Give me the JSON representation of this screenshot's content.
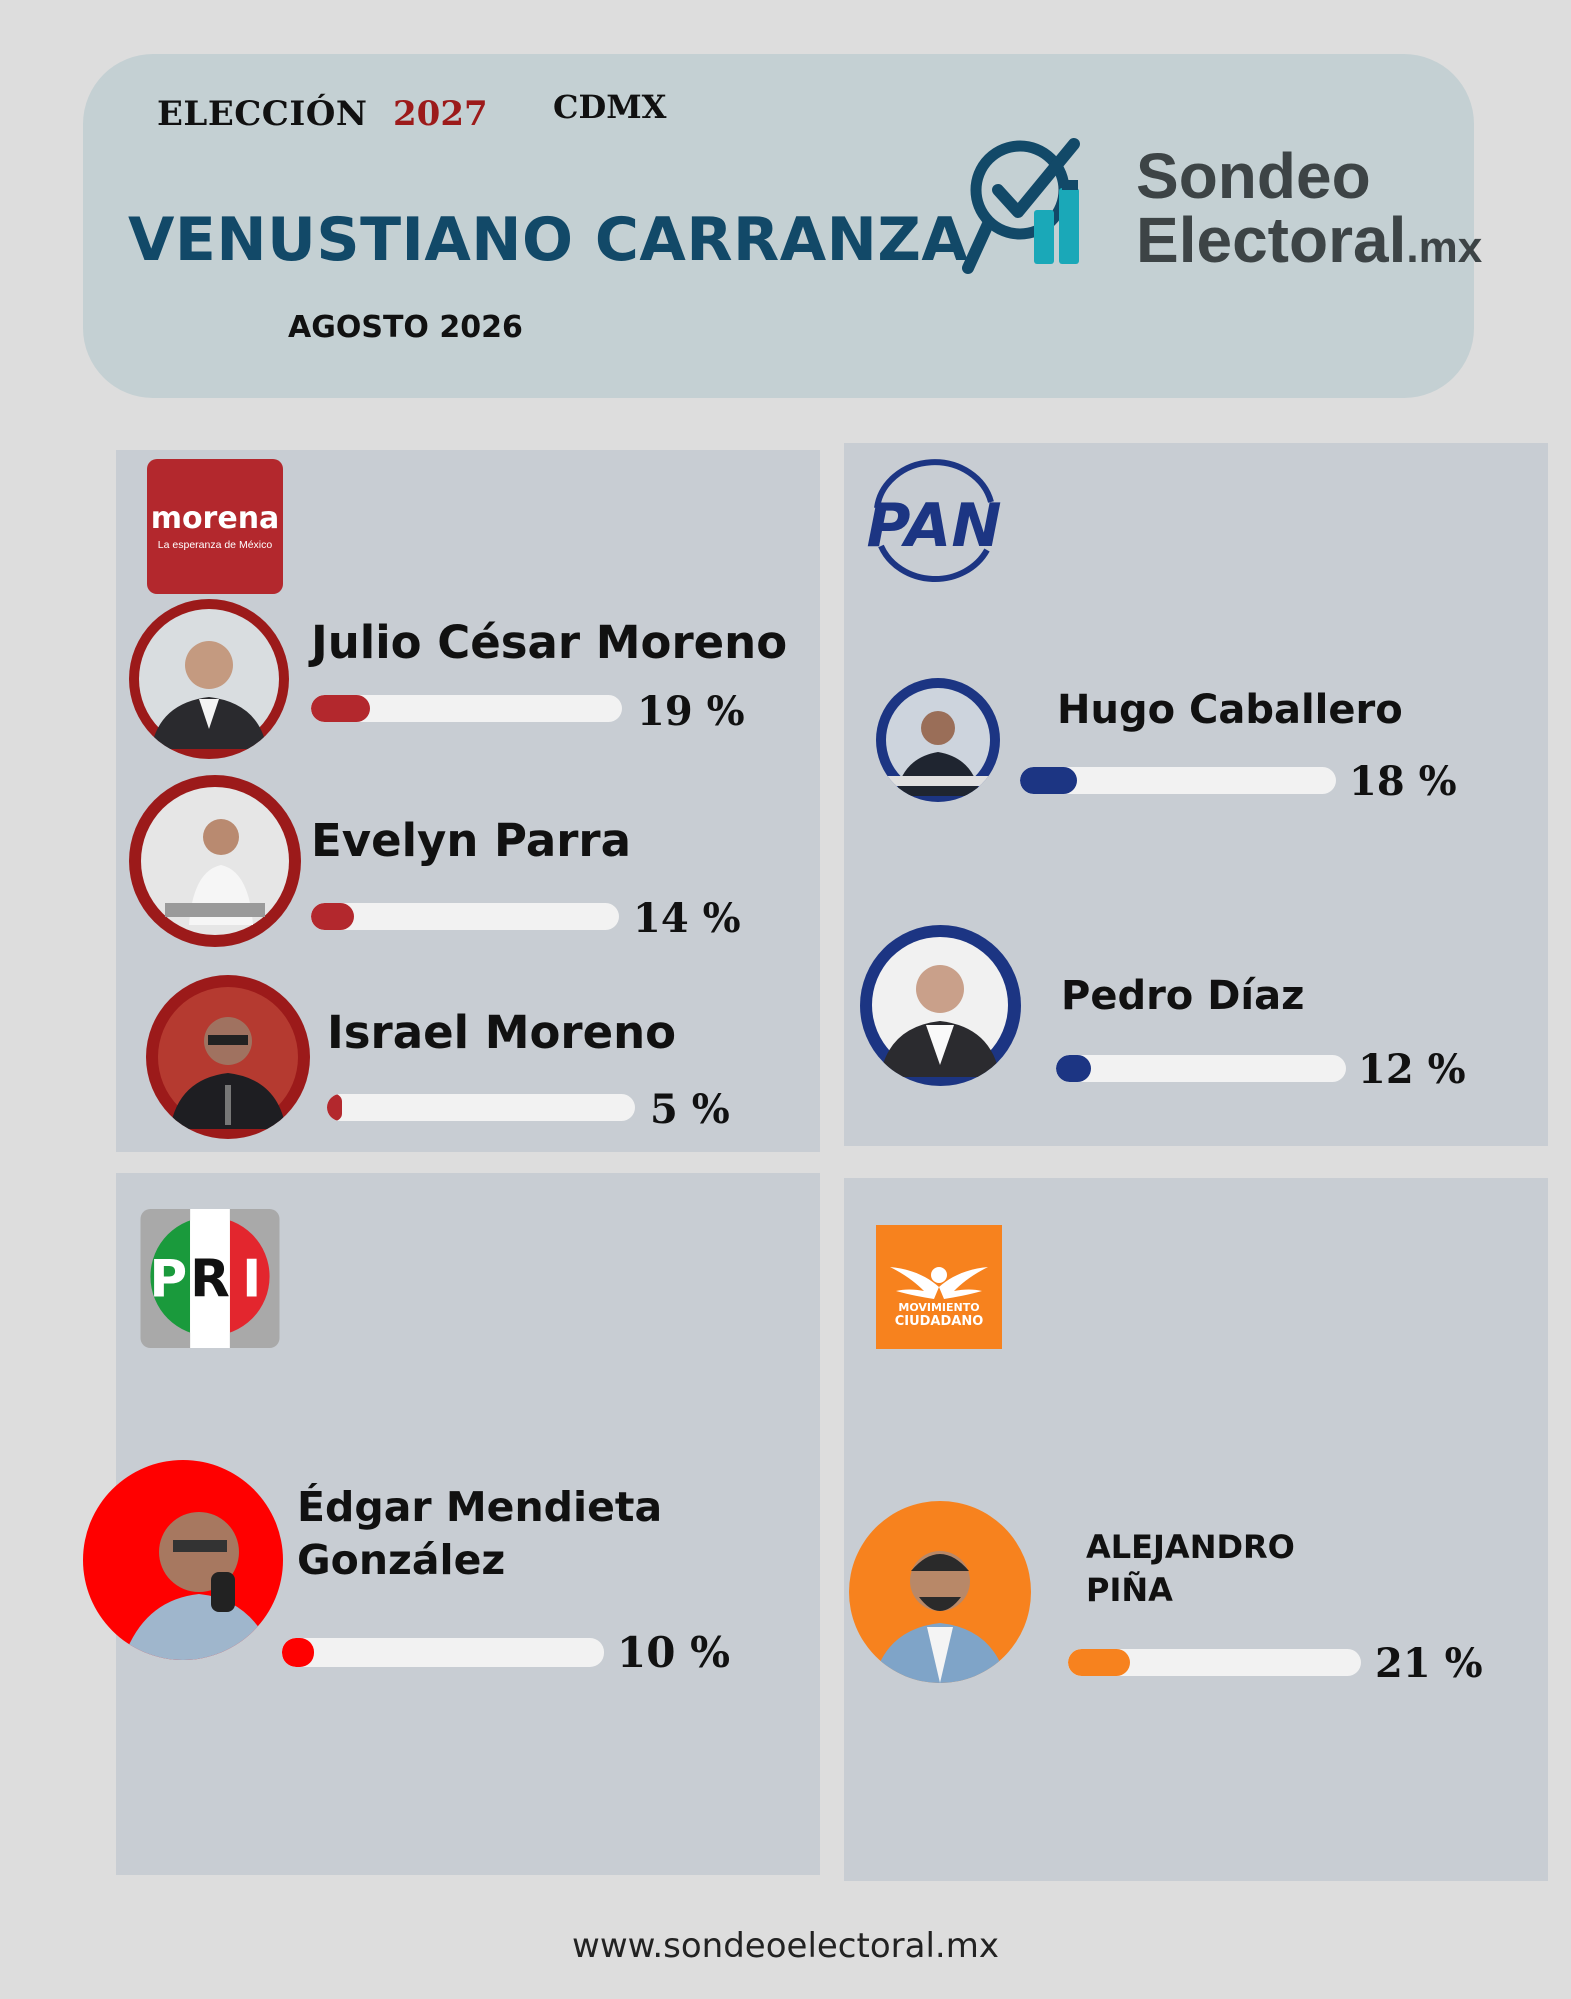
{
  "header": {
    "election_label": "ELECCIÓN",
    "election_year": "2027",
    "region": "CDMX",
    "municipality": "VENUSTIANO CARRANZA",
    "date": "AGOSTO 2026"
  },
  "brand": {
    "line1": "Sondeo",
    "line2": "Electoral",
    "line2_suffix": ".mx",
    "icon": "magnifier-check-chart-icon",
    "colors": {
      "dark": "#124968",
      "teal": "#1aa8b8",
      "text": "#3d4446"
    }
  },
  "parties": {
    "morena": {
      "logo_text": "morena",
      "logo_tagline": "La esperanza de México",
      "color": "#9c1a1a",
      "candidates": [
        {
          "name": "Julio César Moreno",
          "pct_label": "19 %",
          "pct": 19
        },
        {
          "name": "Evelyn Parra",
          "pct_label": "14 %",
          "pct": 14
        },
        {
          "name": "Israel Moreno",
          "pct_label": "5 %",
          "pct": 5
        }
      ]
    },
    "pan": {
      "logo_text": "PAN",
      "color": "#1c3583",
      "candidates": [
        {
          "name": "Hugo Caballero",
          "pct_label": "18 %",
          "pct": 18
        },
        {
          "name": "Pedro Díaz",
          "pct_label": "12 %",
          "pct": 12
        }
      ]
    },
    "pri": {
      "logo_letters": [
        "P",
        "R",
        "I"
      ],
      "color": "#ff0000",
      "candidates": [
        {
          "name_line1": "Édgar Mendieta",
          "name_line2": "González",
          "pct_label": "10 %",
          "pct": 10
        }
      ]
    },
    "mc": {
      "logo_line1": "MOVIMIENTO",
      "logo_line2": "CIUDADANO",
      "color": "#f7821e",
      "candidates": [
        {
          "name_line1": "ALEJANDRO",
          "name_line2": "PIÑA",
          "pct_label": "21 %",
          "pct": 21
        }
      ]
    }
  },
  "footer": {
    "url": "www.sondeoelectoral.mx"
  }
}
